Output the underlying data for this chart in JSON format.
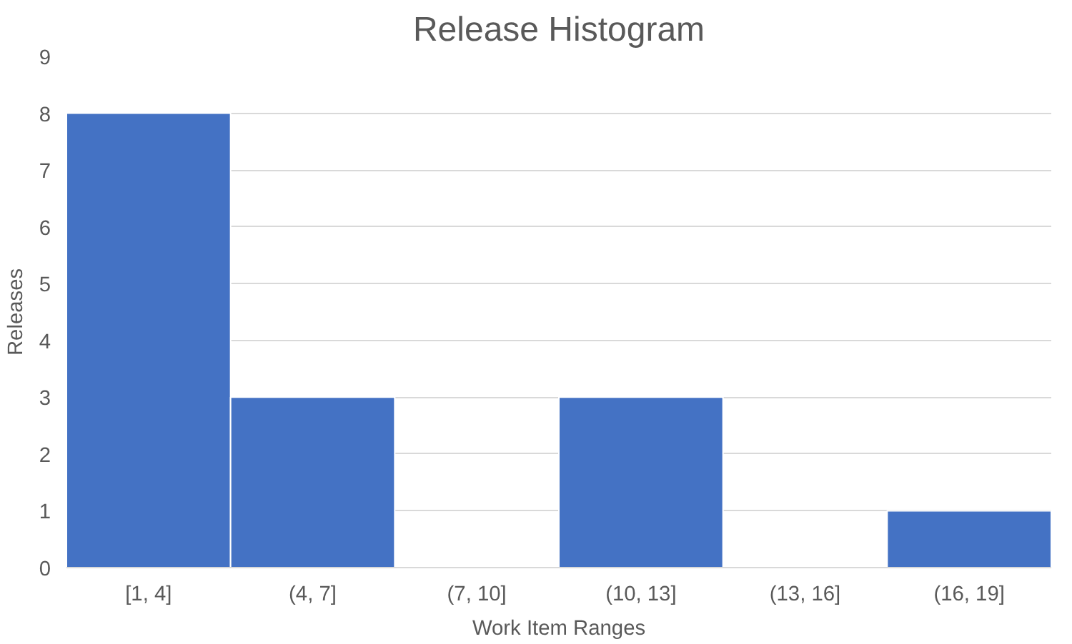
{
  "chart_data": {
    "type": "bar",
    "title": "Release Histogram",
    "xlabel": "Work Item Ranges",
    "ylabel": "Releases",
    "categories": [
      "[1, 4]",
      "(4, 7]",
      "(7, 10]",
      "(10, 13]",
      "(13, 16]",
      "(16, 19]"
    ],
    "values": [
      8,
      3,
      0,
      3,
      0,
      1
    ],
    "color": "#4472c4",
    "ylim": [
      0,
      9
    ],
    "yticks": [
      0,
      1,
      2,
      3,
      4,
      5,
      6,
      7,
      8,
      9
    ],
    "grid": "y"
  }
}
